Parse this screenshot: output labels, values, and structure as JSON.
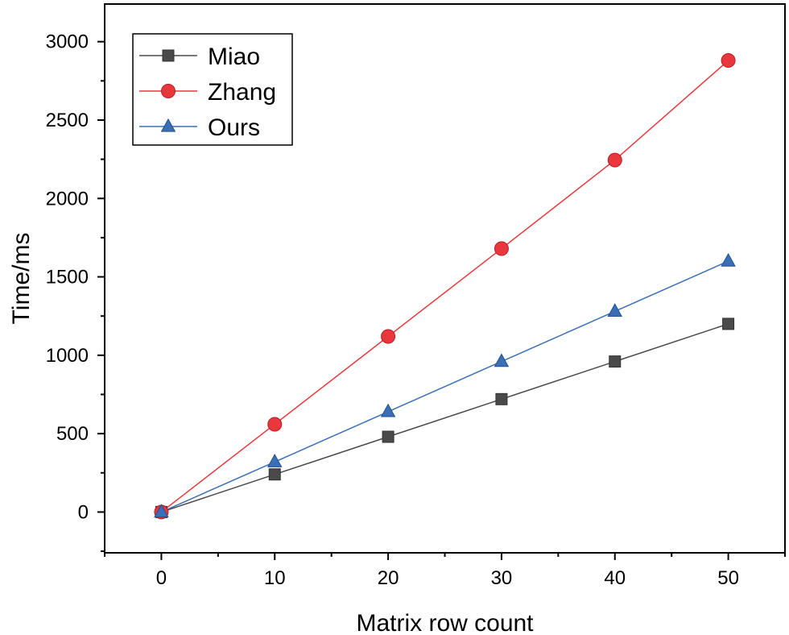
{
  "chart_data": {
    "type": "line",
    "xlabel": "Matrix row count",
    "ylabel": "Time/ms",
    "xlim": [
      -5,
      55
    ],
    "ylim": [
      -260,
      3240
    ],
    "xticks": [
      0,
      10,
      20,
      30,
      40,
      50
    ],
    "yticks": [
      0,
      500,
      1000,
      1500,
      2000,
      2500,
      3000
    ],
    "x": [
      0,
      10,
      20,
      30,
      40,
      50
    ],
    "series": [
      {
        "name": "Miao",
        "values": [
          0,
          240,
          480,
          720,
          960,
          1200
        ],
        "color": "#4a4a4a",
        "marker": "square"
      },
      {
        "name": "Zhang",
        "values": [
          0,
          560,
          1120,
          1680,
          2245,
          2880
        ],
        "color": "#e8383d",
        "marker": "circle"
      },
      {
        "name": "Ours",
        "values": [
          0,
          320,
          640,
          960,
          1280,
          1600
        ],
        "color": "#3a6fb8",
        "marker": "triangle"
      }
    ],
    "grid": false,
    "legend_position": "top-left"
  }
}
